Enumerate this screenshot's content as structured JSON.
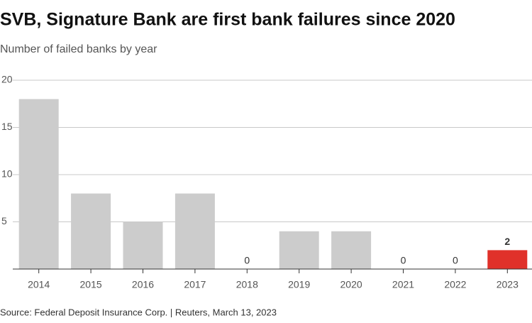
{
  "chart_data": {
    "type": "bar",
    "title": "SVB, Signature Bank are first bank failures since 2020",
    "subtitle": "Number of failed banks by year",
    "source": "Source: Federal Deposit Insurance Corp. | Reuters, March 13, 2023",
    "categories": [
      "2014",
      "2015",
      "2016",
      "2017",
      "2018",
      "2019",
      "2020",
      "2021",
      "2022",
      "2023"
    ],
    "values": [
      18,
      8,
      5,
      8,
      0,
      4,
      4,
      0,
      0,
      2
    ],
    "colors": [
      "#cccccc",
      "#cccccc",
      "#cccccc",
      "#cccccc",
      "#cccccc",
      "#cccccc",
      "#cccccc",
      "#cccccc",
      "#cccccc",
      "#e0312a"
    ],
    "ylim": [
      0,
      20
    ],
    "yticks": [
      5,
      10,
      15,
      20
    ],
    "grid": true
  }
}
